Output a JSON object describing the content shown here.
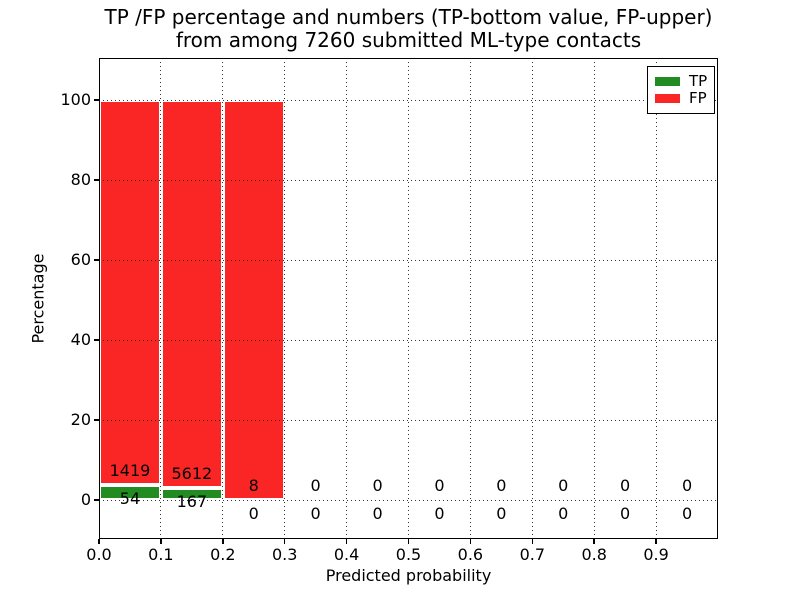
{
  "title_line1": "TP /FP percentage and numbers (TP-bottom value, FP-upper)",
  "title_line2": "from among 7260 submitted ML-type contacts",
  "colors": {
    "tp": "#228b22",
    "fp": "#fa2626",
    "axis": "#000000",
    "background": "#ffffff"
  },
  "chart_data": {
    "type": "bar",
    "stacked": true,
    "title": "TP /FP percentage and numbers (TP-bottom value, FP-upper) from among 7260 submitted ML-type contacts",
    "xlabel": "Predicted probability",
    "ylabel": "Percentage",
    "total_contacts": 7260,
    "xlim": [
      0.0,
      1.0
    ],
    "ylim": [
      -9.7,
      110.5
    ],
    "grid": "dotted",
    "x_ticks": [
      "0.0",
      "0.1",
      "0.2",
      "0.3",
      "0.4",
      "0.5",
      "0.6",
      "0.7",
      "0.8",
      "0.9"
    ],
    "x_tick_values": [
      0.0,
      0.1,
      0.2,
      0.3,
      0.4,
      0.5,
      0.6,
      0.7,
      0.8,
      0.9
    ],
    "y_ticks": [
      "0",
      "20",
      "40",
      "60",
      "80",
      "100"
    ],
    "y_tick_values": [
      0,
      20,
      40,
      60,
      80,
      100
    ],
    "legend": {
      "position": "upper right",
      "entries": [
        {
          "label": "TP",
          "color": "#228b22"
        },
        {
          "label": "FP",
          "color": "#fa2626"
        }
      ]
    },
    "bins": [
      {
        "range": [
          0.0,
          0.1
        ],
        "tp": 54,
        "fp": 1419
      },
      {
        "range": [
          0.1,
          0.2
        ],
        "tp": 167,
        "fp": 5612
      },
      {
        "range": [
          0.2,
          0.3
        ],
        "tp": 0,
        "fp": 8
      },
      {
        "range": [
          0.3,
          0.4
        ],
        "tp": 0,
        "fp": 0
      },
      {
        "range": [
          0.4,
          0.5
        ],
        "tp": 0,
        "fp": 0
      },
      {
        "range": [
          0.5,
          0.6
        ],
        "tp": 0,
        "fp": 0
      },
      {
        "range": [
          0.6,
          0.7
        ],
        "tp": 0,
        "fp": 0
      },
      {
        "range": [
          0.7,
          0.8
        ],
        "tp": 0,
        "fp": 0
      },
      {
        "range": [
          0.8,
          0.9
        ],
        "tp": 0,
        "fp": 0
      },
      {
        "range": [
          0.9,
          1.0
        ],
        "tp": 0,
        "fp": 0
      }
    ]
  }
}
